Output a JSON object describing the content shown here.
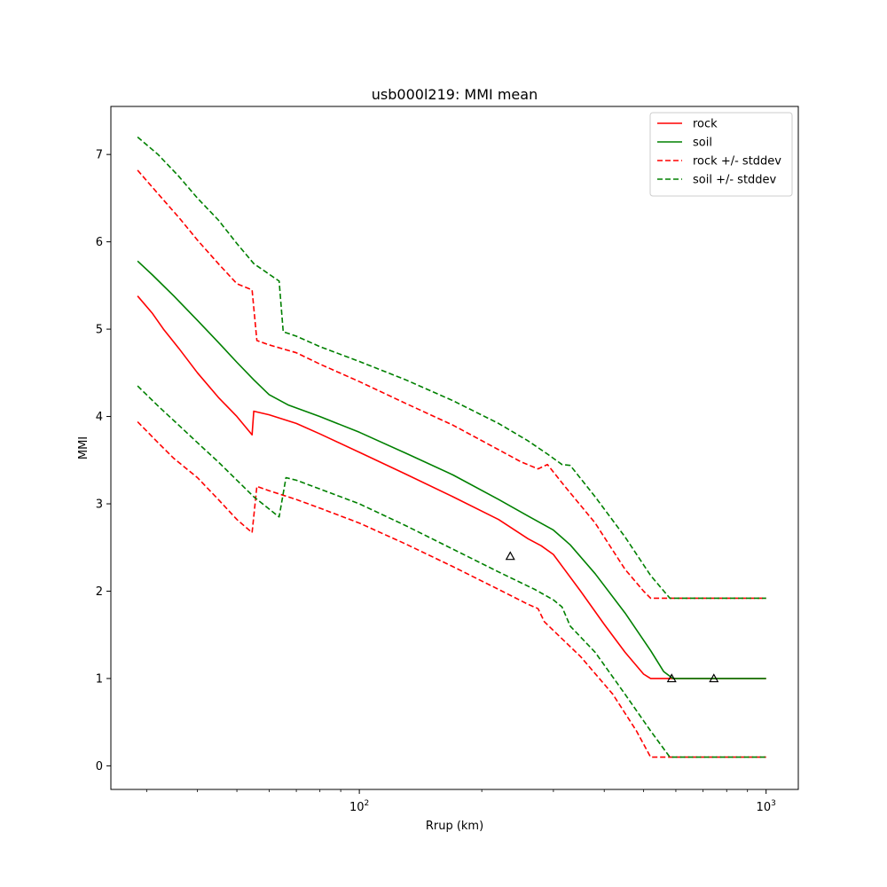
{
  "chart_data": {
    "type": "line",
    "title": "usb000l219: MMI mean",
    "xlabel": "Rrup (km)",
    "ylabel": "MMI",
    "xscale": "log",
    "xlim": [
      24.5,
      1200
    ],
    "ylim": [
      -0.27,
      7.55
    ],
    "x_major_ticks": [
      {
        "value": 100,
        "base": "10",
        "exp": "2"
      },
      {
        "value": 1000,
        "base": "10",
        "exp": "3"
      }
    ],
    "x_minor_ticks": [
      30,
      40,
      50,
      60,
      70,
      80,
      90,
      200,
      300,
      400,
      500,
      600,
      700,
      800,
      900
    ],
    "y_ticks": [
      0,
      1,
      2,
      3,
      4,
      5,
      6,
      7
    ],
    "grid": false,
    "legend": {
      "placement": "top-right"
    },
    "series": [
      {
        "name": "rock",
        "color": "#ff0000",
        "style": "solid",
        "points": [
          [
            28.5,
            5.38
          ],
          [
            31,
            5.18
          ],
          [
            33,
            5.0
          ],
          [
            36,
            4.78
          ],
          [
            40,
            4.5
          ],
          [
            45,
            4.22
          ],
          [
            50,
            4.0
          ],
          [
            54.5,
            3.79
          ],
          [
            55,
            4.06
          ],
          [
            60,
            4.02
          ],
          [
            70,
            3.92
          ],
          [
            80,
            3.8
          ],
          [
            100,
            3.59
          ],
          [
            130,
            3.34
          ],
          [
            170,
            3.08
          ],
          [
            220,
            2.82
          ],
          [
            260,
            2.6
          ],
          [
            280,
            2.52
          ],
          [
            300,
            2.42
          ],
          [
            350,
            2.0
          ],
          [
            400,
            1.62
          ],
          [
            450,
            1.3
          ],
          [
            500,
            1.05
          ],
          [
            520,
            1.0
          ],
          [
            1000,
            1.0
          ]
        ]
      },
      {
        "name": "soil",
        "color": "#008000",
        "style": "solid",
        "points": [
          [
            28.5,
            5.78
          ],
          [
            31,
            5.62
          ],
          [
            35,
            5.38
          ],
          [
            40,
            5.1
          ],
          [
            45,
            4.85
          ],
          [
            50,
            4.62
          ],
          [
            55,
            4.42
          ],
          [
            60,
            4.25
          ],
          [
            67,
            4.13
          ],
          [
            80,
            4.0
          ],
          [
            100,
            3.82
          ],
          [
            130,
            3.58
          ],
          [
            170,
            3.33
          ],
          [
            220,
            3.05
          ],
          [
            260,
            2.86
          ],
          [
            300,
            2.7
          ],
          [
            330,
            2.53
          ],
          [
            380,
            2.2
          ],
          [
            450,
            1.75
          ],
          [
            520,
            1.32
          ],
          [
            560,
            1.08
          ],
          [
            590,
            1.0
          ],
          [
            1000,
            1.0
          ]
        ]
      },
      {
        "name": "rock +/- stddev",
        "color": "#ff0000",
        "style": "dashed",
        "points": [
          [
            28.5,
            6.82
          ],
          [
            32,
            6.55
          ],
          [
            36,
            6.28
          ],
          [
            40,
            6.02
          ],
          [
            45,
            5.75
          ],
          [
            50,
            5.52
          ],
          [
            54.5,
            5.45
          ],
          [
            56,
            4.87
          ],
          [
            60,
            4.82
          ],
          [
            70,
            4.73
          ],
          [
            80,
            4.6
          ],
          [
            100,
            4.4
          ],
          [
            130,
            4.15
          ],
          [
            170,
            3.9
          ],
          [
            220,
            3.62
          ],
          [
            250,
            3.48
          ],
          [
            275,
            3.4
          ],
          [
            290,
            3.45
          ],
          [
            320,
            3.2
          ],
          [
            380,
            2.78
          ],
          [
            450,
            2.25
          ],
          [
            500,
            2.0
          ],
          [
            520,
            1.92
          ],
          [
            1000,
            1.92
          ]
        ]
      },
      {
        "name": "rock +/- stddev",
        "color": "#ff0000",
        "style": "dashed",
        "points": [
          [
            28.5,
            3.94
          ],
          [
            32,
            3.7
          ],
          [
            35,
            3.52
          ],
          [
            40,
            3.3
          ],
          [
            45,
            3.05
          ],
          [
            50,
            2.82
          ],
          [
            54.5,
            2.67
          ],
          [
            56,
            3.2
          ],
          [
            60,
            3.15
          ],
          [
            70,
            3.05
          ],
          [
            80,
            2.95
          ],
          [
            100,
            2.78
          ],
          [
            130,
            2.54
          ],
          [
            170,
            2.28
          ],
          [
            220,
            2.02
          ],
          [
            260,
            1.85
          ],
          [
            275,
            1.8
          ],
          [
            285,
            1.65
          ],
          [
            300,
            1.55
          ],
          [
            350,
            1.25
          ],
          [
            420,
            0.82
          ],
          [
            480,
            0.4
          ],
          [
            520,
            0.1
          ],
          [
            560,
            0.1
          ],
          [
            1000,
            0.1
          ]
        ]
      },
      {
        "name": "soil +/- stddev",
        "color": "#008000",
        "style": "dashed",
        "points": [
          [
            28.5,
            7.2
          ],
          [
            32,
            7.0
          ],
          [
            36,
            6.75
          ],
          [
            40,
            6.5
          ],
          [
            45,
            6.25
          ],
          [
            50,
            5.98
          ],
          [
            55,
            5.75
          ],
          [
            63.5,
            5.55
          ],
          [
            65,
            4.97
          ],
          [
            70,
            4.92
          ],
          [
            80,
            4.8
          ],
          [
            100,
            4.63
          ],
          [
            130,
            4.42
          ],
          [
            170,
            4.18
          ],
          [
            220,
            3.92
          ],
          [
            260,
            3.72
          ],
          [
            290,
            3.57
          ],
          [
            315,
            3.45
          ],
          [
            330,
            3.44
          ],
          [
            380,
            3.08
          ],
          [
            450,
            2.62
          ],
          [
            520,
            2.18
          ],
          [
            580,
            1.92
          ],
          [
            1000,
            1.92
          ]
        ]
      },
      {
        "name": "soil +/- stddev",
        "color": "#008000",
        "style": "dashed",
        "points": [
          [
            28.5,
            4.35
          ],
          [
            32,
            4.12
          ],
          [
            36,
            3.9
          ],
          [
            40,
            3.7
          ],
          [
            45,
            3.48
          ],
          [
            50,
            3.27
          ],
          [
            55,
            3.08
          ],
          [
            63.5,
            2.85
          ],
          [
            66,
            3.3
          ],
          [
            70,
            3.27
          ],
          [
            80,
            3.17
          ],
          [
            100,
            3.0
          ],
          [
            130,
            2.75
          ],
          [
            170,
            2.48
          ],
          [
            220,
            2.22
          ],
          [
            270,
            2.02
          ],
          [
            300,
            1.9
          ],
          [
            315,
            1.82
          ],
          [
            330,
            1.6
          ],
          [
            380,
            1.3
          ],
          [
            450,
            0.82
          ],
          [
            520,
            0.4
          ],
          [
            580,
            0.1
          ],
          [
            1000,
            0.1
          ]
        ]
      }
    ],
    "observations": {
      "marker": "triangle",
      "points": [
        [
          235,
          2.4
        ],
        [
          586,
          1.0
        ],
        [
          744,
          1.0
        ]
      ]
    }
  }
}
